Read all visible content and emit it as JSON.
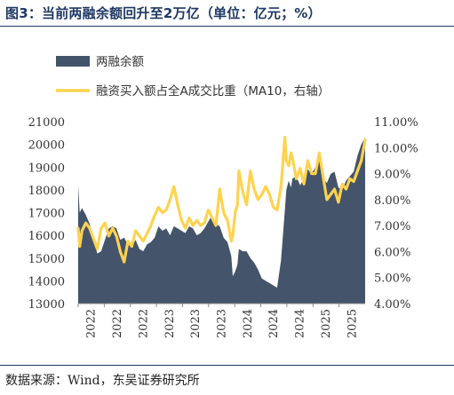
{
  "title": "图3：当前两融余额回升至2万亿（单位：亿元；%）",
  "source": "数据来源：Wind，东吴证券研究所",
  "chart_data": {
    "type": "area+line",
    "legend_placement": "top-left",
    "grid": false,
    "x_tick_labels": [
      "2022",
      "2022",
      "2022",
      "2023",
      "2023",
      "2023",
      "2024",
      "2024",
      "2024",
      "2025",
      "2025"
    ],
    "x_range": [
      2022.0,
      2025.75
    ],
    "y_left": {
      "ticks": [
        13000,
        14000,
        15000,
        16000,
        17000,
        18000,
        19000,
        20000,
        21000
      ],
      "range": [
        13000,
        21000
      ]
    },
    "y_right": {
      "ticks": [
        "4.00%",
        "5.00%",
        "6.00%",
        "7.00%",
        "8.00%",
        "9.00%",
        "10.00%",
        "11.00%"
      ],
      "range": [
        4.0,
        11.0
      ]
    },
    "series": [
      {
        "name": "两融余额",
        "type": "area",
        "axis": "left",
        "color": "#44546a",
        "x": [
          2022.0,
          2022.02,
          2022.05,
          2022.1,
          2022.15,
          2022.2,
          2022.25,
          2022.3,
          2022.35,
          2022.4,
          2022.45,
          2022.5,
          2022.55,
          2022.6,
          2022.65,
          2022.7,
          2022.75,
          2022.8,
          2022.85,
          2022.9,
          2022.95,
          2023.0,
          2023.05,
          2023.1,
          2023.15,
          2023.2,
          2023.25,
          2023.3,
          2023.35,
          2023.4,
          2023.45,
          2023.5,
          2023.55,
          2023.6,
          2023.65,
          2023.7,
          2023.75,
          2023.8,
          2023.85,
          2023.9,
          2023.95,
          2024.0,
          2024.02,
          2024.05,
          2024.08,
          2024.1,
          2024.15,
          2024.2,
          2024.25,
          2024.3,
          2024.35,
          2024.4,
          2024.45,
          2024.5,
          2024.55,
          2024.6,
          2024.65,
          2024.7,
          2024.72,
          2024.75,
          2024.78,
          2024.8,
          2024.85,
          2024.9,
          2024.95,
          2025.0,
          2025.05,
          2025.1,
          2025.15,
          2025.2,
          2025.25,
          2025.3,
          2025.35,
          2025.4,
          2025.45,
          2025.5,
          2025.55,
          2025.6,
          2025.65,
          2025.7,
          2025.75
        ],
        "values": [
          18200,
          17000,
          17200,
          16900,
          16500,
          15900,
          15200,
          15300,
          15800,
          16300,
          16400,
          16300,
          15800,
          15900,
          15600,
          15500,
          15800,
          15400,
          15300,
          15600,
          15700,
          15900,
          16400,
          16200,
          16300,
          16000,
          16400,
          16300,
          16200,
          16100,
          16400,
          16300,
          16000,
          16100,
          16300,
          16600,
          16900,
          16500,
          16400,
          15900,
          15700,
          15100,
          14200,
          14400,
          14700,
          15400,
          15300,
          15300,
          15000,
          14800,
          14500,
          14100,
          14000,
          13900,
          13800,
          13700,
          14900,
          17100,
          18000,
          18400,
          18100,
          18500,
          18600,
          18200,
          18500,
          18900,
          18700,
          19000,
          19300,
          18500,
          18300,
          18700,
          18800,
          18100,
          18000,
          18400,
          18600,
          18800,
          19500,
          20000,
          20300
        ]
      },
      {
        "name": "融资买入额占全A成交比重（MA10，右轴）",
        "type": "line",
        "axis": "right",
        "color": "#ffd34f",
        "x": [
          2022.0,
          2022.02,
          2022.05,
          2022.1,
          2022.15,
          2022.2,
          2022.25,
          2022.3,
          2022.35,
          2022.4,
          2022.45,
          2022.5,
          2022.55,
          2022.6,
          2022.65,
          2022.7,
          2022.75,
          2022.8,
          2022.85,
          2022.9,
          2022.95,
          2023.0,
          2023.05,
          2023.1,
          2023.15,
          2023.2,
          2023.25,
          2023.3,
          2023.35,
          2023.4,
          2023.45,
          2023.5,
          2023.55,
          2023.6,
          2023.65,
          2023.7,
          2023.75,
          2023.8,
          2023.85,
          2023.9,
          2023.95,
          2024.0,
          2024.02,
          2024.05,
          2024.08,
          2024.1,
          2024.15,
          2024.2,
          2024.25,
          2024.3,
          2024.35,
          2024.4,
          2024.45,
          2024.5,
          2024.55,
          2024.6,
          2024.65,
          2024.7,
          2024.72,
          2024.75,
          2024.78,
          2024.8,
          2024.85,
          2024.9,
          2024.95,
          2025.0,
          2025.05,
          2025.1,
          2025.15,
          2025.2,
          2025.25,
          2025.3,
          2025.35,
          2025.4,
          2025.45,
          2025.5,
          2025.55,
          2025.6,
          2025.65,
          2025.7,
          2025.75
        ],
        "values": [
          6.9,
          6.2,
          6.8,
          7.1,
          6.9,
          6.5,
          6.1,
          6.9,
          7.1,
          6.6,
          6.9,
          6.6,
          6.0,
          5.6,
          6.4,
          6.2,
          6.8,
          6.6,
          6.4,
          6.7,
          7.0,
          7.4,
          7.7,
          7.5,
          7.6,
          8.0,
          8.5,
          7.8,
          7.2,
          6.9,
          7.3,
          7.0,
          7.2,
          7.0,
          7.1,
          7.6,
          7.3,
          7.0,
          8.4,
          7.5,
          7.2,
          6.4,
          6.6,
          7.5,
          7.8,
          9.1,
          8.3,
          7.8,
          9.1,
          8.4,
          8.0,
          8.2,
          8.5,
          8.2,
          7.7,
          7.6,
          8.5,
          10.4,
          9.5,
          9.3,
          9.8,
          9.6,
          8.8,
          9.2,
          8.6,
          9.5,
          9.0,
          9.0,
          9.8,
          8.9,
          8.0,
          8.2,
          8.4,
          7.9,
          8.6,
          8.4,
          8.8,
          8.7,
          9.1,
          9.5,
          10.3
        ]
      }
    ]
  }
}
